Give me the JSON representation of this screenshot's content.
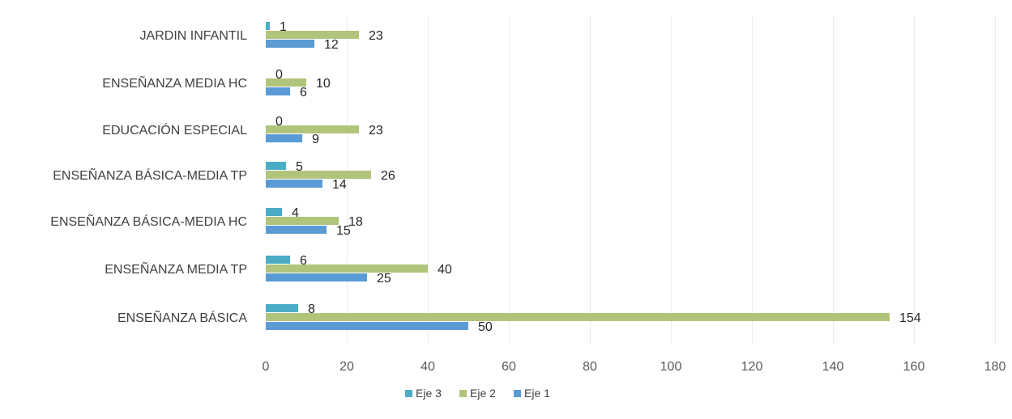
{
  "chart_data": {
    "type": "bar",
    "orientation": "horizontal",
    "categories": [
      "JARDIN INFANTIL",
      "ENSEÑANZA MEDIA HC",
      "EDUCACIÓN ESPECIAL",
      "ENSEÑANZA BÁSICA-MEDIA TP",
      "ENSEÑANZA BÁSICA-MEDIA HC",
      "ENSEÑANZA MEDIA TP",
      "ENSEÑANZA BÁSICA"
    ],
    "series": [
      {
        "name": "Eje 3",
        "color": "#4bacc6",
        "values": [
          1,
          0,
          0,
          5,
          4,
          6,
          8
        ]
      },
      {
        "name": "Eje 2",
        "color": "#b0c47c",
        "values": [
          23,
          10,
          23,
          26,
          18,
          40,
          154
        ]
      },
      {
        "name": "Eje 1",
        "color": "#5b9bd5",
        "values": [
          12,
          6,
          9,
          14,
          15,
          25,
          50
        ]
      }
    ],
    "xlim": [
      0,
      180
    ],
    "xticks": [
      0,
      20,
      40,
      60,
      80,
      100,
      120,
      140,
      160,
      180
    ],
    "grid": true,
    "legend_position": "bottom",
    "data_labels": true
  }
}
